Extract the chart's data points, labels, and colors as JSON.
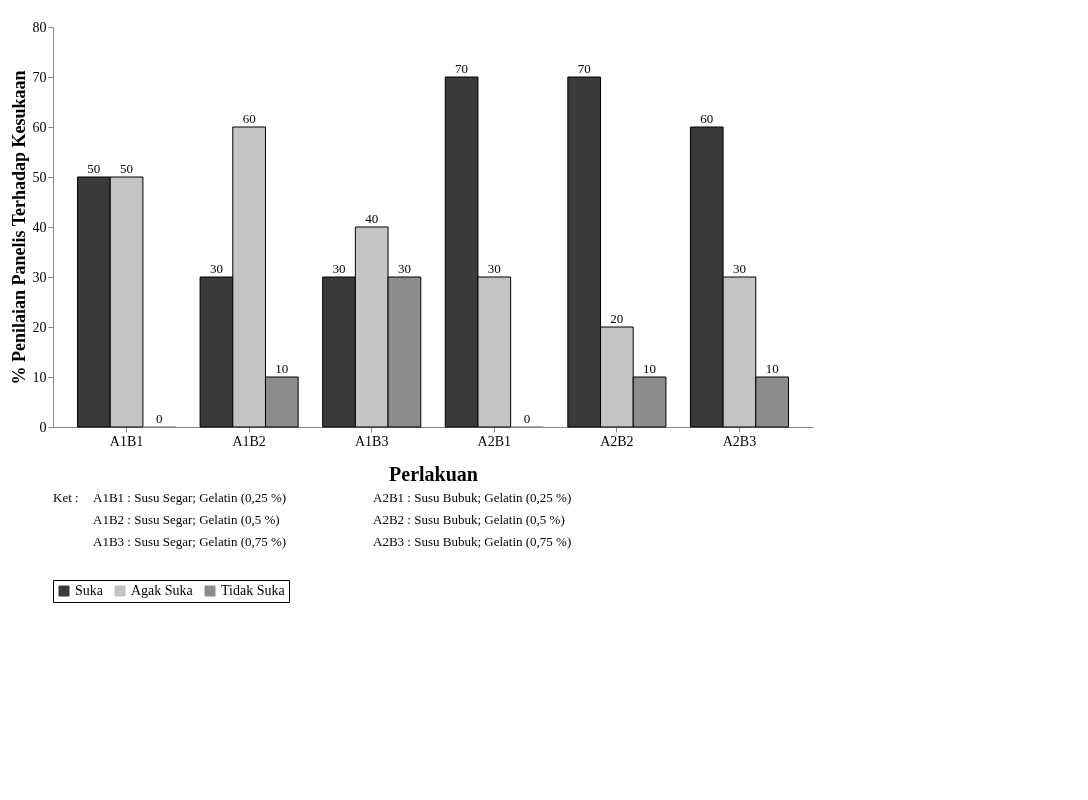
{
  "chart_data": {
    "type": "bar",
    "xlabel": "Perlakuan",
    "ylabel": "% Penilaian Panelis Terhadap Kesukaan",
    "categories": [
      "A1B1",
      "A1B2",
      "A1B3",
      "A2B1",
      "A2B2",
      "A2B3"
    ],
    "series": [
      {
        "name": "Suka",
        "color": "#3a3a3a",
        "values": [
          50,
          30,
          30,
          70,
          70,
          60
        ]
      },
      {
        "name": "Agak Suka",
        "color": "#c4c4c4",
        "values": [
          50,
          60,
          40,
          30,
          20,
          30
        ]
      },
      {
        "name": "Tidak Suka",
        "color": "#8c8c8c",
        "values": [
          0,
          10,
          30,
          0,
          10,
          10
        ]
      }
    ],
    "ylim": [
      0,
      80
    ],
    "yticks": [
      0,
      10,
      20,
      30,
      40,
      50,
      60,
      70,
      80
    ],
    "grid": false,
    "legend": "bottom",
    "data_labels": true,
    "annotations": [
      "Ket :",
      "A1B1 : Susu Segar; Gelatin (0,25 %)",
      "A1B2 : Susu Segar; Gelatin (0,5 %)",
      "A1B3 : Susu Segar; Gelatin (0,75 %)",
      "A2B1 : Susu Bubuk; Gelatin (0,25 %)",
      "A2B2 : Susu Bubuk; Gelatin (0,5 %)",
      "A2B3 : Susu Bubuk; Gelatin (0,75 %)"
    ]
  }
}
